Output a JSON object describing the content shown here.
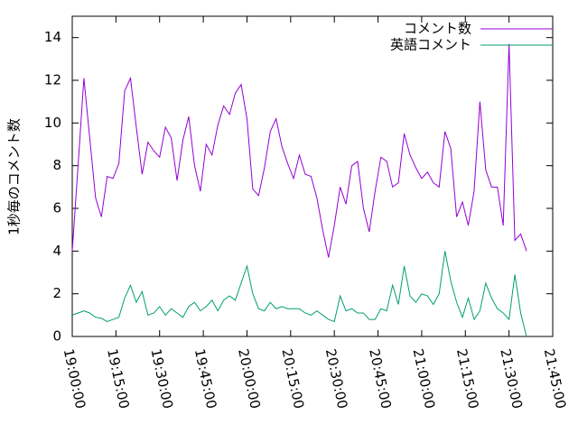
{
  "chart_data": {
    "type": "line",
    "ylabel": "1秒毎のコメント数",
    "x": [
      "19:00:00",
      "19:02:00",
      "19:04:00",
      "19:06:00",
      "19:08:00",
      "19:10:00",
      "19:12:00",
      "19:14:00",
      "19:16:00",
      "19:18:00",
      "19:20:00",
      "19:22:00",
      "19:24:00",
      "19:26:00",
      "19:28:00",
      "19:30:00",
      "19:32:00",
      "19:34:00",
      "19:36:00",
      "19:38:00",
      "19:40:00",
      "19:42:00",
      "19:44:00",
      "19:46:00",
      "19:48:00",
      "19:50:00",
      "19:52:00",
      "19:54:00",
      "19:56:00",
      "19:58:00",
      "20:00:00",
      "20:02:00",
      "20:04:00",
      "20:06:00",
      "20:08:00",
      "20:10:00",
      "20:12:00",
      "20:14:00",
      "20:16:00",
      "20:18:00",
      "20:20:00",
      "20:22:00",
      "20:24:00",
      "20:26:00",
      "20:28:00",
      "20:30:00",
      "20:32:00",
      "20:34:00",
      "20:36:00",
      "20:38:00",
      "20:40:00",
      "20:42:00",
      "20:44:00",
      "20:46:00",
      "20:48:00",
      "20:50:00",
      "20:52:00",
      "20:54:00",
      "20:56:00",
      "20:58:00",
      "21:00:00",
      "21:02:00",
      "21:04:00",
      "21:06:00",
      "21:08:00",
      "21:10:00",
      "21:12:00",
      "21:14:00",
      "21:16:00",
      "21:18:00",
      "21:20:00",
      "21:22:00",
      "21:24:00",
      "21:26:00",
      "21:28:00",
      "21:30:00",
      "21:32:00",
      "21:34:00",
      "21:36:00"
    ],
    "series": [
      {
        "name": "コメント数",
        "color": "#9400d3",
        "values": [
          4.0,
          8.0,
          12.1,
          9.3,
          6.5,
          5.6,
          7.5,
          7.4,
          8.1,
          11.5,
          12.1,
          9.8,
          7.6,
          9.1,
          8.7,
          8.4,
          9.8,
          9.3,
          7.3,
          9.2,
          10.3,
          8.0,
          6.8,
          9.0,
          8.5,
          9.9,
          10.8,
          10.4,
          11.4,
          11.8,
          10.2,
          6.9,
          6.6,
          7.9,
          9.6,
          10.2,
          8.9,
          8.1,
          7.4,
          8.5,
          7.6,
          7.5,
          6.5,
          5.0,
          3.7,
          5.2,
          7.0,
          6.2,
          8.0,
          8.2,
          6.0,
          4.9,
          6.8,
          8.4,
          8.2,
          7.0,
          7.2,
          9.5,
          8.5,
          7.9,
          7.4,
          7.7,
          7.2,
          7.0,
          9.6,
          8.8,
          5.6,
          6.3,
          5.2,
          6.8,
          11.0,
          7.8,
          7.0,
          7.0,
          5.2,
          13.7,
          4.5,
          4.8,
          4.0
        ]
      },
      {
        "name": "英語コメント",
        "color": "#009e73",
        "values": [
          1.0,
          1.1,
          1.2,
          1.1,
          0.9,
          0.85,
          0.7,
          0.8,
          0.9,
          1.8,
          2.4,
          1.6,
          2.1,
          1.0,
          1.1,
          1.4,
          1.0,
          1.3,
          1.1,
          0.9,
          1.4,
          1.6,
          1.2,
          1.4,
          1.7,
          1.2,
          1.7,
          1.9,
          1.7,
          2.5,
          3.3,
          2.0,
          1.3,
          1.2,
          1.6,
          1.3,
          1.4,
          1.3,
          1.3,
          1.3,
          1.1,
          1.0,
          1.2,
          1.0,
          0.8,
          0.7,
          1.9,
          1.2,
          1.3,
          1.1,
          1.1,
          0.8,
          0.8,
          1.3,
          1.2,
          2.4,
          1.5,
          3.3,
          1.9,
          1.6,
          2.0,
          1.9,
          1.5,
          2.0,
          4.0,
          2.6,
          1.6,
          0.9,
          1.8,
          0.8,
          1.2,
          2.5,
          1.8,
          1.3,
          1.1,
          0.8,
          2.9,
          1.1,
          0.0
        ]
      }
    ],
    "xlim": [
      "19:00:00",
      "21:45:00"
    ],
    "xticks": [
      "19:00:00",
      "19:15:00",
      "19:30:00",
      "19:45:00",
      "20:00:00",
      "20:15:00",
      "20:30:00",
      "20:45:00",
      "21:00:00",
      "21:15:00",
      "21:30:00",
      "21:45:00"
    ],
    "ylim": [
      0,
      15
    ],
    "yticks": [
      0,
      2,
      4,
      6,
      8,
      10,
      12,
      14
    ],
    "legend": "top-right"
  }
}
